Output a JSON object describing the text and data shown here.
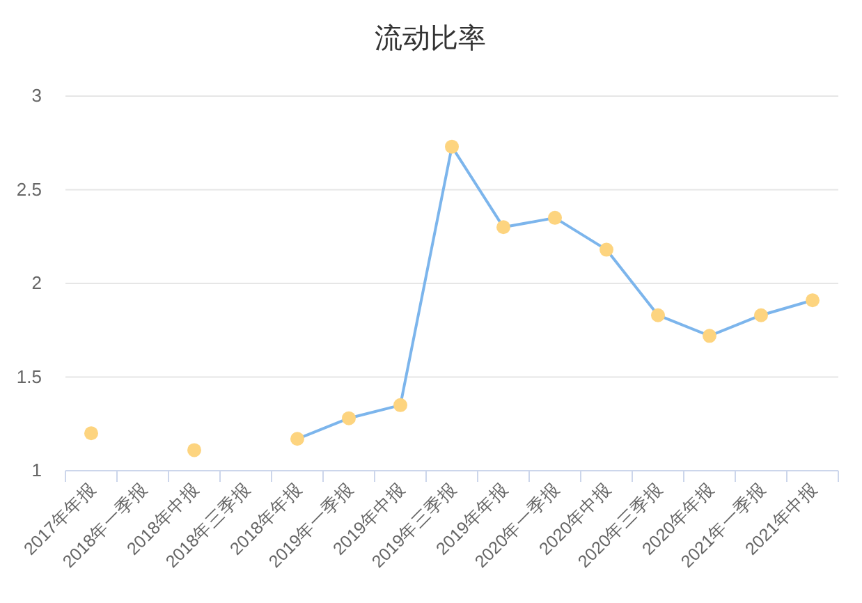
{
  "chart_data": {
    "type": "line",
    "title": "流动比率",
    "categories": [
      "2017年年报",
      "2018年一季报",
      "2018年中报",
      "2018年三季报",
      "2018年年报",
      "2019年一季报",
      "2019年中报",
      "2019年三季报",
      "2019年年报",
      "2020年一季报",
      "2020年中报",
      "2020年三季报",
      "2020年年报",
      "2021年一季报",
      "2021年中报"
    ],
    "series": [
      {
        "color": "#7cb5ec",
        "colors": [
          "#fdd47f",
          null,
          "#fdd47f",
          null,
          "#fdd47f",
          "#fdd47f",
          "#fdd47f",
          "#fdd47f",
          "#fdd47f",
          "#fdd47f",
          "#fdd47f",
          "#fdd47f",
          "#fdd47f",
          "#fdd47f",
          "#fdd47f"
        ],
        "values": [
          1.2,
          null,
          1.11,
          null,
          1.17,
          1.28,
          1.35,
          2.73,
          2.3,
          2.35,
          2.18,
          1.83,
          1.72,
          1.83,
          1.91
        ]
      }
    ],
    "ylim": [
      1,
      3
    ],
    "yticks": [
      1,
      1.5,
      2,
      2.5,
      3
    ],
    "grid": "y",
    "marker": "circle",
    "line_style": "solid"
  }
}
